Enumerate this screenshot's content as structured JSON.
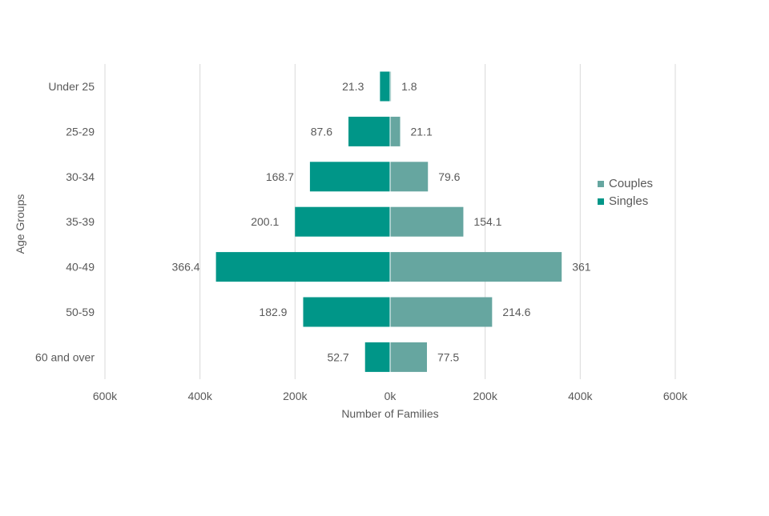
{
  "chart_data": {
    "type": "bar",
    "orientation": "horizontal-diverging",
    "title": "",
    "xlabel": "Number of Families",
    "ylabel": "Age Groups",
    "xlim": [
      -600000,
      600000
    ],
    "xticks": [
      -600000,
      -400000,
      -200000,
      0,
      200000,
      400000,
      600000
    ],
    "xtick_labels": [
      "600k",
      "400k",
      "200k",
      "0k",
      "200k",
      "400k",
      "600k"
    ],
    "grid": true,
    "legend_position": "right",
    "categories": [
      "Under 25",
      "25-29",
      "30-34",
      "35-39",
      "40-49",
      "50-59",
      "60 and over"
    ],
    "series": [
      {
        "name": "Couples",
        "color": "#66a6a0",
        "side": "right",
        "values": [
          1800,
          21100,
          79600,
          154100,
          361000,
          214600,
          77500
        ],
        "labels": [
          "1.8",
          "21.1",
          "79.6",
          "154.1",
          "361",
          "214.6",
          "77.5"
        ]
      },
      {
        "name": "Singles",
        "color": "#009688",
        "side": "left",
        "values": [
          21300,
          87600,
          168700,
          200100,
          366400,
          182900,
          52700
        ],
        "labels": [
          "21.3",
          "87.6",
          "168.7",
          "200.1",
          "366.4",
          "182.9",
          "52.7"
        ]
      }
    ]
  }
}
